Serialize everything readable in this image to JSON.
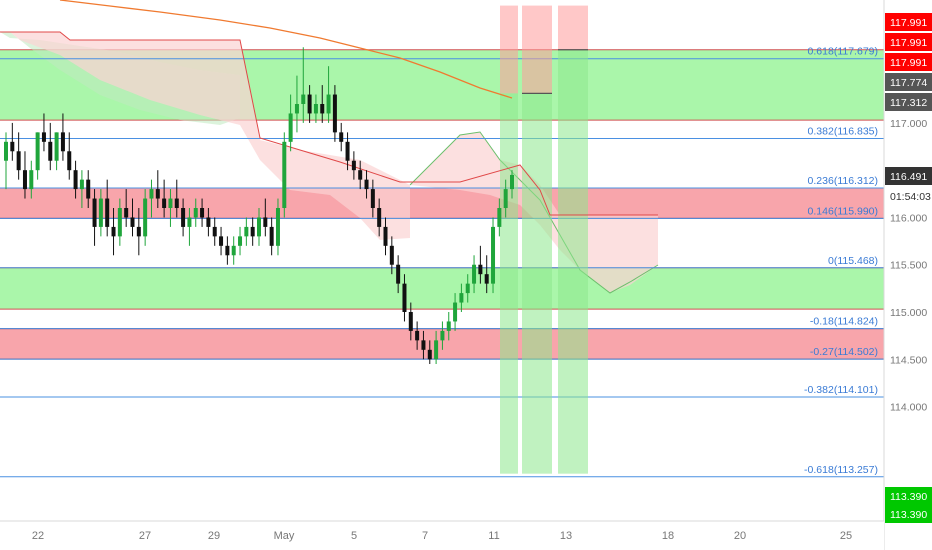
{
  "chart_data": {
    "type": "candlestick",
    "instrument_currency_note": "",
    "x_axis": {
      "ticks": [
        "22",
        "27",
        "29",
        "May",
        "5",
        "7",
        "11",
        "13",
        "18",
        "20",
        "25"
      ]
    },
    "y_axis": {
      "range": [
        112.8,
        118.3
      ],
      "ticks": [
        "117.000",
        "116.500",
        "116.000",
        "115.500",
        "115.000",
        "114.500",
        "114.000"
      ]
    },
    "price_tags": [
      {
        "value": 117.991,
        "label": "117.991",
        "color": "#ff0000"
      },
      {
        "value": 117.991,
        "label": "117.991",
        "color": "#ff0000"
      },
      {
        "value": 117.991,
        "label": "117.991",
        "color": "#ff0000"
      },
      {
        "value": 117.774,
        "label": "117.774",
        "color": "#555555"
      },
      {
        "value": 117.312,
        "label": "117.312",
        "color": "#555555"
      },
      {
        "value": 116.491,
        "label": "116.491",
        "color": "#333333"
      },
      {
        "value": 116.38,
        "label": "01:54:03",
        "color": "#ffffff",
        "text_color": "#333333"
      },
      {
        "value": 113.39,
        "label": "113.390",
        "color": "#00c800"
      },
      {
        "value": 113.39,
        "label": "113.390",
        "color": "#00c800"
      }
    ],
    "fibonacci_levels": [
      {
        "ratio": "0.618",
        "value": 117.679,
        "label": "0.618(117.679)"
      },
      {
        "ratio": "0.382",
        "value": 116.835,
        "label": "0.382(116.835)"
      },
      {
        "ratio": "0.236",
        "value": 116.312,
        "label": "0.236(116.312)"
      },
      {
        "ratio": "0.146",
        "value": 115.99,
        "label": "0.146(115.990)"
      },
      {
        "ratio": "0",
        "value": 115.468,
        "label": "0(115.468)"
      },
      {
        "ratio": "-0.18",
        "value": 114.824,
        "label": "-0.18(114.824)"
      },
      {
        "ratio": "-0.27",
        "value": 114.502,
        "label": "-0.27(114.502)"
      },
      {
        "ratio": "-0.382",
        "value": 114.101,
        "label": "-0.382(114.101)"
      },
      {
        "ratio": "-0.618",
        "value": 113.257,
        "label": "-0.618(113.257)"
      }
    ],
    "zones": [
      {
        "kind": "support",
        "top": 117.774,
        "bottom": 117.03,
        "color": "#a5f5a5"
      },
      {
        "kind": "resistance",
        "top": 116.312,
        "bottom": 115.99,
        "color": "#f8a0a6"
      },
      {
        "kind": "support",
        "top": 115.468,
        "bottom": 115.03,
        "color": "#a5f5a5"
      },
      {
        "kind": "resistance",
        "top": 114.824,
        "bottom": 114.502,
        "color": "#f8a0a6"
      }
    ],
    "trade_projections": [
      {
        "entry": 117.312,
        "stop": 117.991,
        "target": 113.39
      },
      {
        "entry": 117.312,
        "stop": 117.991,
        "target": 113.39
      },
      {
        "entry": 117.774,
        "stop": 117.991,
        "target": 113.39
      }
    ],
    "candles": [
      [
        116.6,
        116.9,
        116.3,
        116.8
      ],
      [
        116.8,
        117.0,
        116.6,
        116.7
      ],
      [
        116.7,
        116.9,
        116.4,
        116.5
      ],
      [
        116.5,
        116.7,
        116.2,
        116.3
      ],
      [
        116.3,
        116.6,
        116.2,
        116.5
      ],
      [
        116.5,
        116.9,
        116.4,
        116.9
      ],
      [
        116.9,
        117.1,
        116.7,
        116.8
      ],
      [
        116.8,
        117.0,
        116.5,
        116.6
      ],
      [
        116.6,
        116.9,
        116.5,
        116.9
      ],
      [
        116.9,
        117.1,
        116.6,
        116.7
      ],
      [
        116.7,
        116.9,
        116.4,
        116.5
      ],
      [
        116.5,
        116.6,
        116.2,
        116.3
      ],
      [
        116.3,
        116.5,
        116.1,
        116.4
      ],
      [
        116.4,
        116.5,
        116.1,
        116.2
      ],
      [
        116.2,
        116.3,
        115.7,
        115.9
      ],
      [
        115.9,
        116.3,
        115.8,
        116.2
      ],
      [
        116.2,
        116.4,
        115.8,
        115.9
      ],
      [
        115.9,
        116.1,
        115.6,
        115.8
      ],
      [
        115.8,
        116.2,
        115.7,
        116.1
      ],
      [
        116.1,
        116.3,
        115.9,
        116.0
      ],
      [
        116.0,
        116.2,
        115.8,
        115.9
      ],
      [
        115.9,
        116.1,
        115.6,
        115.8
      ],
      [
        115.8,
        116.3,
        115.7,
        116.2
      ],
      [
        116.2,
        116.4,
        116.0,
        116.3
      ],
      [
        116.3,
        116.5,
        116.1,
        116.2
      ],
      [
        116.2,
        116.4,
        116.0,
        116.1
      ],
      [
        116.1,
        116.3,
        115.9,
        116.2
      ],
      [
        116.2,
        116.4,
        116.0,
        116.1
      ],
      [
        116.1,
        116.2,
        115.8,
        115.9
      ],
      [
        115.9,
        116.1,
        115.7,
        116.0
      ],
      [
        116.0,
        116.2,
        115.9,
        116.1
      ],
      [
        116.1,
        116.2,
        115.9,
        116.0
      ],
      [
        116.0,
        116.1,
        115.8,
        115.9
      ],
      [
        115.9,
        116.0,
        115.7,
        115.8
      ],
      [
        115.8,
        115.9,
        115.6,
        115.7
      ],
      [
        115.7,
        115.8,
        115.5,
        115.6
      ],
      [
        115.6,
        115.8,
        115.5,
        115.7
      ],
      [
        115.7,
        115.9,
        115.6,
        115.8
      ],
      [
        115.8,
        116.0,
        115.7,
        115.9
      ],
      [
        115.9,
        116.0,
        115.7,
        115.8
      ],
      [
        115.8,
        116.1,
        115.7,
        116.0
      ],
      [
        116.0,
        116.2,
        115.8,
        115.9
      ],
      [
        115.9,
        116.0,
        115.6,
        115.7
      ],
      [
        115.7,
        116.2,
        115.6,
        116.1
      ],
      [
        116.1,
        116.9,
        116.0,
        116.8
      ],
      [
        116.8,
        117.3,
        116.7,
        117.1
      ],
      [
        117.1,
        117.5,
        116.9,
        117.2
      ],
      [
        117.2,
        117.8,
        117.0,
        117.3
      ],
      [
        117.3,
        117.4,
        117.0,
        117.1
      ],
      [
        117.1,
        117.3,
        117.0,
        117.2
      ],
      [
        117.2,
        117.4,
        117.0,
        117.1
      ],
      [
        117.1,
        117.6,
        117.0,
        117.3
      ],
      [
        117.3,
        117.4,
        116.8,
        116.9
      ],
      [
        116.9,
        117.0,
        116.7,
        116.8
      ],
      [
        116.8,
        116.9,
        116.5,
        116.6
      ],
      [
        116.6,
        116.7,
        116.4,
        116.5
      ],
      [
        116.5,
        116.6,
        116.3,
        116.4
      ],
      [
        116.4,
        116.5,
        116.2,
        116.3
      ],
      [
        116.3,
        116.4,
        116.0,
        116.1
      ],
      [
        116.1,
        116.2,
        115.8,
        115.9
      ],
      [
        115.9,
        116.0,
        115.6,
        115.7
      ],
      [
        115.7,
        115.8,
        115.4,
        115.5
      ],
      [
        115.5,
        115.6,
        115.2,
        115.3
      ],
      [
        115.3,
        115.4,
        114.9,
        115.0
      ],
      [
        115.0,
        115.1,
        114.7,
        114.8
      ],
      [
        114.8,
        114.9,
        114.6,
        114.7
      ],
      [
        114.7,
        114.8,
        114.5,
        114.6
      ],
      [
        114.6,
        114.7,
        114.45,
        114.5
      ],
      [
        114.5,
        114.8,
        114.45,
        114.7
      ],
      [
        114.7,
        114.9,
        114.6,
        114.8
      ],
      [
        114.8,
        115.0,
        114.7,
        114.9
      ],
      [
        114.9,
        115.2,
        114.8,
        115.1
      ],
      [
        115.1,
        115.3,
        115.0,
        115.2
      ],
      [
        115.2,
        115.4,
        115.1,
        115.3
      ],
      [
        115.3,
        115.6,
        115.2,
        115.5
      ],
      [
        115.5,
        115.7,
        115.3,
        115.4
      ],
      [
        115.4,
        115.6,
        115.2,
        115.3
      ],
      [
        115.3,
        116.0,
        115.2,
        115.9
      ],
      [
        115.9,
        116.2,
        115.8,
        116.1
      ],
      [
        116.1,
        116.4,
        116.0,
        116.3
      ],
      [
        116.3,
        116.5,
        116.2,
        116.45
      ]
    ]
  }
}
